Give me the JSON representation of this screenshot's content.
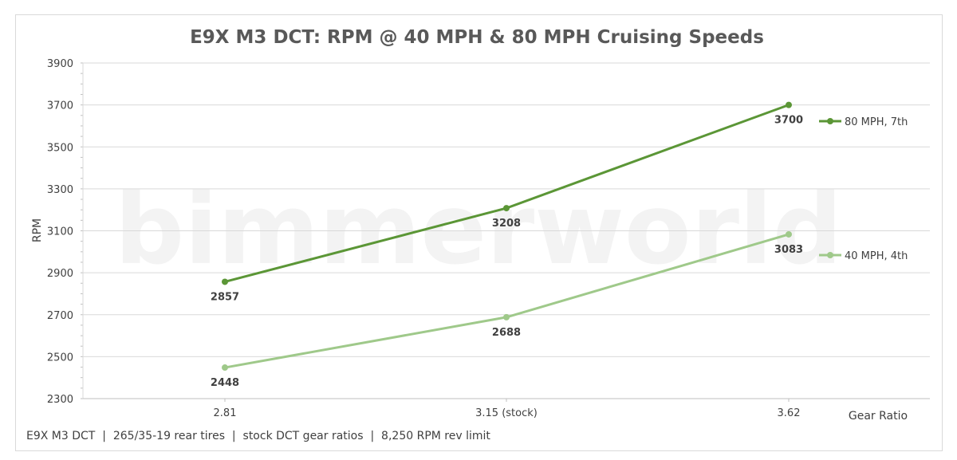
{
  "chart_data": {
    "type": "line",
    "title": "E9X M3 DCT: RPM @ 40 MPH & 80 MPH Cruising Speeds",
    "xlabel": "Gear Ratio",
    "ylabel": "RPM",
    "categories": [
      "2.81",
      "3.15 (stock)",
      "3.62"
    ],
    "ylim": [
      2300,
      3900
    ],
    "yticks": [
      2300,
      2500,
      2700,
      2900,
      3100,
      3300,
      3500,
      3700,
      3900
    ],
    "grid": true,
    "legend_position": "right",
    "series": [
      {
        "name": "80 MPH, 7th",
        "values": [
          2857,
          3208,
          3700
        ],
        "color": "#5b9636"
      },
      {
        "name": "40 MPH, 4th",
        "values": [
          2448,
          2688,
          3083
        ],
        "color": "#9fc98a"
      }
    ],
    "watermark": "bimmerworld",
    "footnote": "E9X M3 DCT  |  265/35-19 rear tires  |  stock DCT gear ratios  |  8,250 RPM rev limit"
  }
}
